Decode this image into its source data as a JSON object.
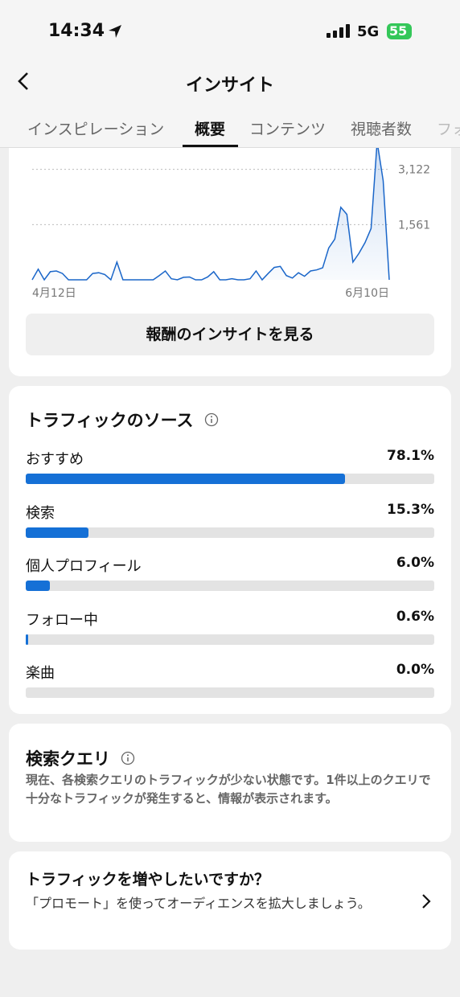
{
  "status_bar": {
    "time": "14:34",
    "network": "5G",
    "battery": "55"
  },
  "header": {
    "title": "インサイト",
    "tabs": [
      "インスピレーション",
      "概要",
      "コンテンツ",
      "視聴者数",
      "フォ"
    ]
  },
  "chart_data": [
    {
      "type": "line",
      "categories": [
        "4月12日",
        null,
        null,
        null,
        null,
        null,
        null,
        null,
        null,
        null,
        null,
        null,
        null,
        null,
        null,
        null,
        null,
        null,
        null,
        null,
        null,
        null,
        null,
        null,
        null,
        null,
        null,
        null,
        null,
        null,
        null,
        null,
        null,
        null,
        null,
        null,
        null,
        null,
        null,
        null,
        null,
        null,
        null,
        null,
        null,
        null,
        null,
        null,
        null,
        null,
        null,
        null,
        null,
        null,
        null,
        null,
        null,
        null,
        null,
        "6月10日"
      ],
      "values": [
        0,
        300,
        0,
        230,
        250,
        180,
        0,
        0,
        0,
        0,
        180,
        200,
        150,
        0,
        500,
        0,
        0,
        0,
        0,
        0,
        0,
        120,
        250,
        30,
        0,
        70,
        80,
        0,
        0,
        80,
        230,
        0,
        0,
        30,
        0,
        0,
        30,
        250,
        0,
        180,
        350,
        380,
        120,
        50,
        200,
        100,
        250,
        280,
        340,
        900,
        1150,
        2050,
        1850,
        500,
        750,
        1050,
        1450,
        3900,
        2800,
        0
      ],
      "color": "#1a66c9",
      "ylim": [
        0,
        3750
      ],
      "yticks": [
        {
          "value": 1561,
          "label": "1,561"
        },
        {
          "value": 3122,
          "label": "3,122"
        }
      ],
      "grid": true
    },
    {
      "type": "bar",
      "orientation": "horizontal",
      "title": "トラフィックのソース",
      "categories": [
        "おすすめ",
        "検索",
        "個人プロフィール",
        "フォロー中",
        "楽曲"
      ],
      "values": [
        78.1,
        15.3,
        6.0,
        0.6,
        0.0
      ],
      "value_labels": [
        "78.1%",
        "15.3%",
        "6.0%",
        "0.6%",
        "0.0%"
      ],
      "xlim": [
        0,
        100
      ],
      "color": "#1570d6"
    }
  ],
  "rewards_button": "報酬のインサイトを見る",
  "search_queries": {
    "title": "検索クエリ",
    "message": "現在、各検索クエリのトラフィックが少ない状態です。1件以上のクエリで十分なトラフィックが発生すると、情報が表示されます。"
  },
  "promotion": {
    "title": "トラフィックを増やしたいですか？",
    "message": "「プロモート」を使ってオーディエンスを拡大しましょう。"
  }
}
